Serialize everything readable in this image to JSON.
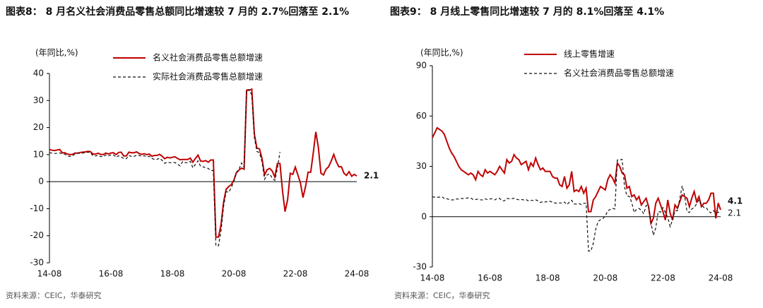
{
  "chart_data": [
    {
      "type": "line",
      "title": "图表8： 8 月名义社会消费品零售总额同比增速较 7 月的 2.7%回落至 2.1%",
      "y_label": "(年同比,%)",
      "source": "资料来源：CEIC，华泰研究",
      "ylim": [
        -30,
        40
      ],
      "yticks": [
        -30,
        -20,
        -10,
        0,
        10,
        20,
        30,
        40
      ],
      "categories": [
        "14-08",
        null,
        null,
        null,
        null,
        null,
        null,
        null,
        null,
        null,
        null,
        null,
        null,
        null,
        null,
        null,
        null,
        null,
        null,
        null,
        null,
        null,
        null,
        null,
        "16-08",
        null,
        null,
        null,
        null,
        null,
        null,
        null,
        null,
        null,
        null,
        null,
        null,
        null,
        null,
        null,
        null,
        null,
        null,
        null,
        null,
        null,
        null,
        null,
        "18-08",
        null,
        null,
        null,
        null,
        null,
        null,
        null,
        null,
        null,
        null,
        null,
        null,
        null,
        null,
        null,
        null,
        null,
        null,
        null,
        null,
        null,
        null,
        null,
        "20-08",
        null,
        null,
        null,
        null,
        null,
        null,
        null,
        null,
        null,
        null,
        null,
        null,
        null,
        null,
        null,
        null,
        null,
        null,
        null,
        null,
        null,
        null,
        null,
        "22-08",
        null,
        null,
        null,
        null,
        null,
        null,
        null,
        null,
        null,
        null,
        null,
        null,
        null,
        null,
        null,
        null,
        null,
        null,
        null,
        null,
        null,
        null,
        null,
        "24-08"
      ],
      "series": [
        {
          "name": "名义社会消费品零售总额增速",
          "color": "#c00000",
          "style": "solid",
          "label_last": true,
          "values": [
            11.9,
            11.6,
            11.5,
            11.7,
            11.9,
            10.7,
            10.7,
            10.2,
            10.0,
            10.1,
            10.6,
            10.5,
            10.8,
            10.9,
            11.0,
            11.2,
            11.1,
            10.2,
            10.2,
            10.5,
            10.1,
            10.0,
            10.6,
            10.2,
            10.6,
            10.7,
            10.0,
            10.8,
            10.9,
            9.5,
            9.5,
            10.9,
            10.7,
            10.7,
            11.0,
            10.4,
            10.1,
            10.3,
            10.0,
            10.2,
            9.4,
            9.7,
            9.7,
            10.1,
            9.4,
            8.5,
            9.0,
            8.8,
            9.0,
            9.2,
            8.6,
            8.1,
            8.2,
            8.2,
            8.2,
            8.7,
            7.2,
            8.6,
            9.8,
            7.6,
            7.5,
            7.8,
            7.2,
            8.0,
            8.0,
            -20.5,
            -20.5,
            -15.8,
            -7.5,
            -2.8,
            -1.8,
            -1.1,
            0.5,
            3.3,
            4.3,
            5.0,
            4.6,
            33.8,
            33.8,
            34.2,
            17.7,
            12.4,
            12.1,
            8.5,
            2.5,
            4.4,
            4.9,
            3.9,
            1.7,
            6.7,
            6.7,
            -3.5,
            -11.1,
            -6.7,
            3.1,
            2.7,
            5.4,
            2.5,
            -0.5,
            -5.9,
            -1.8,
            3.5,
            3.5,
            10.6,
            18.4,
            12.7,
            3.1,
            2.5,
            4.6,
            5.5,
            7.6,
            10.1,
            7.4,
            5.5,
            5.5,
            3.1,
            2.3,
            3.7,
            2.0,
            2.7,
            2.1
          ]
        },
        {
          "name": "实际社会消费品零售总额增速",
          "color": "#111111",
          "style": "dashed",
          "label_last": false,
          "values": [
            10.8,
            10.5,
            10.4,
            10.5,
            10.7,
            10.2,
            10.2,
            9.5,
            9.3,
            9.5,
            10.3,
            10.6,
            10.4,
            10.6,
            10.7,
            10.9,
            10.8,
            9.5,
            9.5,
            9.7,
            9.3,
            9.2,
            9.9,
            9.5,
            9.9,
            9.9,
            9.0,
            9.6,
            9.2,
            8.5,
            8.5,
            9.7,
            9.3,
            9.3,
            9.8,
            9.7,
            9.4,
            9.6,
            9.1,
            9.4,
            8.6,
            8.2,
            8.2,
            8.7,
            7.9,
            6.8,
            7.2,
            7.0,
            7.0,
            7.1,
            6.5,
            5.8,
            7.4,
            7.0,
            7.0,
            7.5,
            5.1,
            6.4,
            7.7,
            5.7,
            5.5,
            5.1,
            4.9,
            4.1,
            4.1,
            -23.7,
            -23.7,
            -18.1,
            -9.1,
            -3.7,
            -3.9,
            -2.2,
            0.1,
            3.4,
            4.6,
            6.9,
            5.4,
            34.0,
            34.0,
            32.0,
            16.3,
            11.2,
            10.7,
            7.3,
            0.9,
            2.5,
            2.9,
            1.2,
            0.5,
            4.8,
            11.0,
            null,
            null,
            null,
            null,
            null,
            null,
            null,
            null,
            null,
            null,
            null,
            null,
            null,
            null,
            null,
            null,
            null,
            null,
            null,
            null,
            null,
            null,
            null,
            null,
            null,
            null,
            null,
            null,
            null,
            null
          ]
        }
      ]
    },
    {
      "type": "line",
      "title": "图表9： 8 月线上零售同比增速较 7 月的 8.1%回落至 4.1%",
      "y_label": "(年同比,%)",
      "source": "资料来源：CEIC，华泰研究",
      "ylim": [
        -30,
        90
      ],
      "yticks": [
        -30,
        0,
        30,
        60,
        90
      ],
      "categories": [
        "14-08",
        null,
        null,
        null,
        null,
        null,
        null,
        null,
        null,
        null,
        null,
        null,
        null,
        null,
        null,
        null,
        null,
        null,
        null,
        null,
        null,
        null,
        null,
        null,
        "16-08",
        null,
        null,
        null,
        null,
        null,
        null,
        null,
        null,
        null,
        null,
        null,
        null,
        null,
        null,
        null,
        null,
        null,
        null,
        null,
        null,
        null,
        null,
        null,
        "18-08",
        null,
        null,
        null,
        null,
        null,
        null,
        null,
        null,
        null,
        null,
        null,
        null,
        null,
        null,
        null,
        null,
        null,
        null,
        null,
        null,
        null,
        null,
        null,
        "20-08",
        null,
        null,
        null,
        null,
        null,
        null,
        null,
        null,
        null,
        null,
        null,
        null,
        null,
        null,
        null,
        null,
        null,
        null,
        null,
        null,
        null,
        null,
        null,
        "22-08",
        null,
        null,
        null,
        null,
        null,
        null,
        null,
        null,
        null,
        null,
        null,
        null,
        null,
        null,
        null,
        null,
        null,
        null,
        null,
        null,
        null,
        null,
        null,
        "24-08"
      ],
      "series": [
        {
          "name": "线上零售增速",
          "color": "#c00000",
          "style": "solid",
          "label_last": true,
          "values": [
            47,
            50,
            53,
            52,
            51,
            49,
            45,
            41,
            38,
            36,
            33,
            30,
            28,
            27,
            26,
            25,
            26,
            25,
            22,
            27,
            25,
            24,
            28,
            26,
            27,
            26,
            25,
            27,
            30,
            28,
            26,
            34,
            32,
            33,
            37,
            35,
            34,
            31,
            32,
            33,
            28,
            32,
            30,
            35,
            31,
            28,
            29,
            27,
            27,
            27,
            24,
            23,
            23,
            19,
            18,
            24,
            17,
            19,
            27,
            15,
            16,
            15,
            18,
            14,
            17,
            3,
            3,
            10,
            12,
            15,
            18,
            17,
            16,
            22,
            25,
            23,
            20,
            32,
            30,
            26,
            25,
            17,
            18,
            12,
            13,
            10,
            12,
            7,
            9,
            11,
            6,
            -4,
            -1,
            8,
            11,
            7,
            3,
            -2,
            10,
            2,
            -2,
            7,
            5,
            9,
            13,
            12,
            11,
            6,
            11,
            15,
            9,
            12,
            6,
            8,
            8,
            10,
            14,
            14,
            -1,
            8.1,
            4.1
          ]
        },
        {
          "name": "名义社会消费品零售总额增速",
          "color": "#111111",
          "style": "dashed",
          "label_last": true,
          "values": [
            11.9,
            11.6,
            11.5,
            11.7,
            11.9,
            10.7,
            10.7,
            10.2,
            10.0,
            10.1,
            10.6,
            10.5,
            10.8,
            10.9,
            11.0,
            11.2,
            11.1,
            10.2,
            10.2,
            10.5,
            10.1,
            10.0,
            10.6,
            10.2,
            10.6,
            10.7,
            10.0,
            10.8,
            10.9,
            9.5,
            9.5,
            10.9,
            10.7,
            10.7,
            11.0,
            10.4,
            10.1,
            10.3,
            10.0,
            10.2,
            9.4,
            9.7,
            9.7,
            10.1,
            9.4,
            8.5,
            9.0,
            8.8,
            9.0,
            9.2,
            8.6,
            8.1,
            8.2,
            8.2,
            8.2,
            8.7,
            7.2,
            8.6,
            9.8,
            7.6,
            7.5,
            7.8,
            7.2,
            8.0,
            8.0,
            -20.5,
            -20.5,
            -15.8,
            -7.5,
            -2.8,
            -1.8,
            -1.1,
            0.5,
            3.3,
            4.3,
            5.0,
            4.6,
            33.8,
            33.8,
            34.2,
            17.7,
            12.4,
            12.1,
            8.5,
            2.5,
            4.4,
            4.9,
            3.9,
            1.7,
            6.7,
            6.7,
            -3.5,
            -11.1,
            -6.7,
            3.1,
            2.7,
            5.4,
            2.5,
            -0.5,
            -5.9,
            -1.8,
            3.5,
            3.5,
            10.6,
            18.4,
            12.7,
            3.1,
            2.5,
            4.6,
            5.5,
            7.6,
            10.1,
            7.4,
            5.5,
            5.5,
            3.1,
            2.3,
            3.7,
            2.0,
            2.7,
            2.1
          ]
        }
      ]
    }
  ]
}
